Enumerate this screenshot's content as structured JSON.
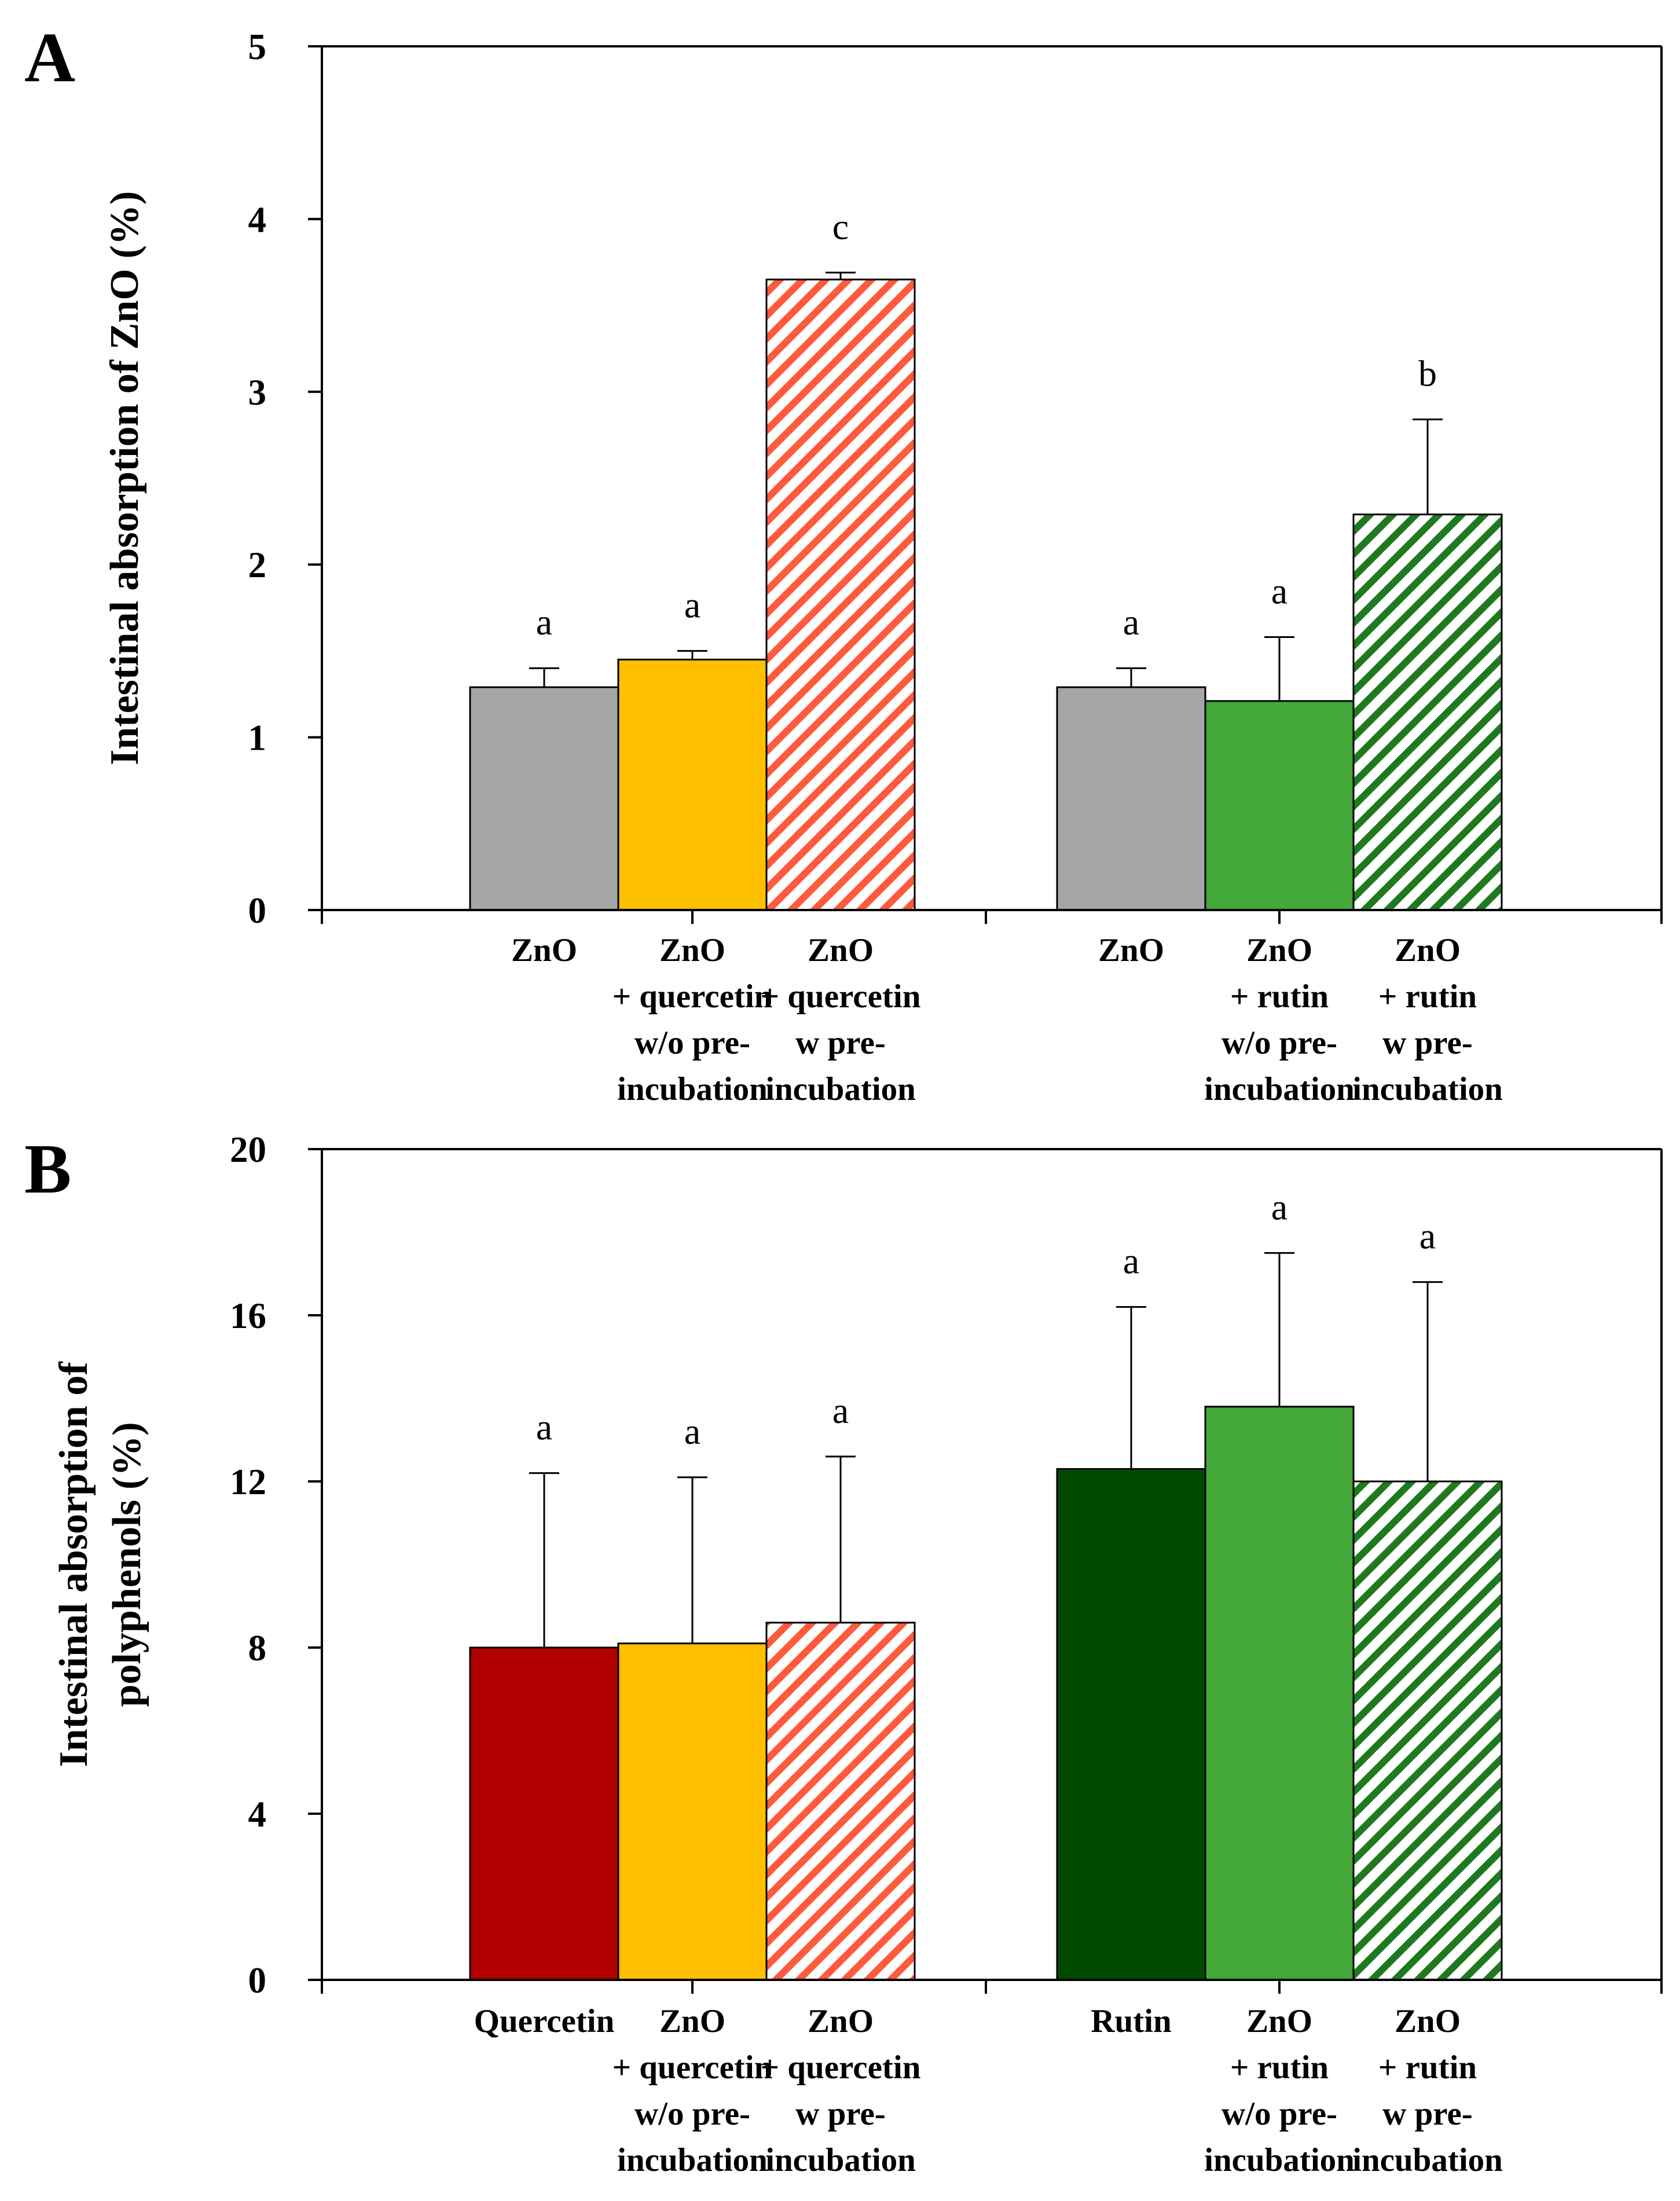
{
  "chart_data": [
    {
      "panel": "A",
      "type": "bar",
      "title": "",
      "xlabel": "",
      "ylabel": "Intestinal absorption of ZnO (%)",
      "ylim": [
        0,
        5
      ],
      "yticks": [
        "0",
        "1",
        "2",
        "3",
        "4",
        "5"
      ],
      "grid": false,
      "groups": [
        {
          "bars": [
            {
              "label_lines": [
                "ZnO"
              ],
              "value": 1.29,
              "error": 0.11,
              "sig": "a",
              "color": "#a6a6a6",
              "hatch": false
            },
            {
              "label_lines": [
                "ZnO",
                "+ quercetin",
                "w/o pre-",
                "incubation"
              ],
              "value": 1.45,
              "error": 0.05,
              "sig": "a",
              "color": "#ffc000",
              "hatch": false
            },
            {
              "label_lines": [
                "ZnO",
                "+ quercetin",
                "w pre-",
                "incubation"
              ],
              "value": 3.65,
              "error": 0.04,
              "sig": "c",
              "color": "#ff5a3c",
              "hatch": true
            }
          ]
        },
        {
          "bars": [
            {
              "label_lines": [
                "ZnO"
              ],
              "value": 1.29,
              "error": 0.11,
              "sig": "a",
              "color": "#a6a6a6",
              "hatch": false
            },
            {
              "label_lines": [
                "ZnO",
                "+ rutin",
                "w/o pre-",
                "incubation"
              ],
              "value": 1.21,
              "error": 0.37,
              "sig": "a",
              "color": "#43a838",
              "hatch": false
            },
            {
              "label_lines": [
                "ZnO",
                "+ rutin",
                "w pre-",
                "incubation"
              ],
              "value": 2.29,
              "error": 0.55,
              "sig": "b",
              "color": "#1f7a1f",
              "hatch": true
            }
          ]
        }
      ]
    },
    {
      "panel": "B",
      "type": "bar",
      "title": "",
      "xlabel": "",
      "ylabel": "Intestinal absorption of polyphenols (%)",
      "ylabel_lines": [
        "Intestinal absorption of",
        "polyphenols (%)"
      ],
      "ylim": [
        0,
        20
      ],
      "yticks": [
        "0",
        "4",
        "8",
        "12",
        "16",
        "20"
      ],
      "grid": false,
      "groups": [
        {
          "bars": [
            {
              "label_lines": [
                "Quercetin"
              ],
              "value": 8.0,
              "error": 4.2,
              "sig": "a",
              "color": "#b00000",
              "hatch": false
            },
            {
              "label_lines": [
                "ZnO",
                "+ quercetin",
                "w/o pre-",
                "incubation"
              ],
              "value": 8.1,
              "error": 4.0,
              "sig": "a",
              "color": "#ffc000",
              "hatch": false
            },
            {
              "label_lines": [
                "ZnO",
                "+ quercetin",
                "w pre-",
                "incubation"
              ],
              "value": 8.6,
              "error": 4.0,
              "sig": "a",
              "color": "#ff5a3c",
              "hatch": true
            }
          ]
        },
        {
          "bars": [
            {
              "label_lines": [
                "Rutin"
              ],
              "value": 12.3,
              "error": 3.9,
              "sig": "a",
              "color": "#004b00",
              "hatch": false
            },
            {
              "label_lines": [
                "ZnO",
                "+ rutin",
                "w/o pre-",
                "incubation"
              ],
              "value": 13.8,
              "error": 3.7,
              "sig": "a",
              "color": "#43a838",
              "hatch": false
            },
            {
              "label_lines": [
                "ZnO",
                "+ rutin",
                "w pre-",
                "incubation"
              ],
              "value": 12.0,
              "error": 4.8,
              "sig": "a",
              "color": "#1f7a1f",
              "hatch": true
            }
          ]
        }
      ]
    }
  ]
}
